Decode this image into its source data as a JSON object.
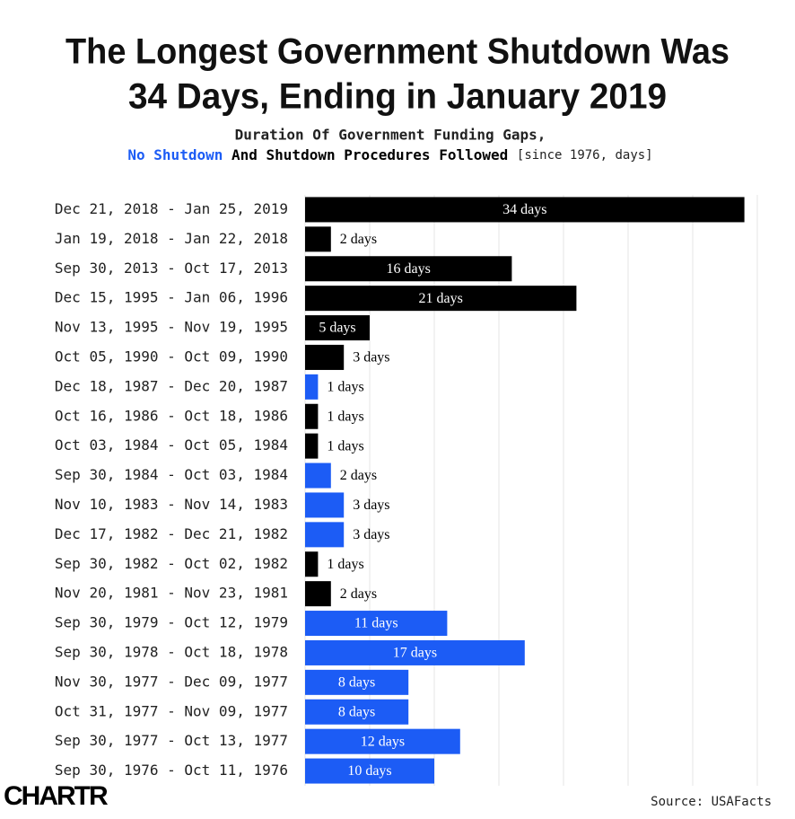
{
  "chart_data": {
    "type": "barh",
    "title": [
      "The Longest Government Shutdown Was",
      "34 Days, Ending in January 2019"
    ],
    "subtitle": "Duration Of Government Funding Gaps,",
    "legend": [
      {
        "name": "No Shutdown",
        "color": "#1c5cf5"
      },
      {
        "name": "And Shutdown Procedures Followed",
        "color": "#000000"
      }
    ],
    "unit_note": "[since 1976, days]",
    "categories": [
      "Dec 21, 2018 - Jan 25, 2019",
      "Jan 19, 2018 - Jan 22, 2018",
      "Sep 30, 2013 - Oct 17, 2013",
      "Dec 15, 1995 - Jan 06, 1996",
      "Nov 13, 1995 - Nov 19, 1995",
      "Oct 05, 1990 - Oct 09, 1990",
      "Dec 18, 1987 - Dec 20, 1987",
      "Oct 16, 1986 - Oct 18, 1986",
      "Oct 03, 1984 - Oct 05, 1984",
      "Sep 30, 1984 - Oct 03, 1984",
      "Nov 10, 1983 - Nov 14, 1983",
      "Dec 17, 1982 - Dec 21, 1982",
      "Sep 30, 1982 - Oct 02, 1982",
      "Nov 20, 1981 - Nov 23, 1981",
      "Sep 30, 1979 - Oct 12, 1979",
      "Sep 30, 1978 - Oct 18, 1978",
      "Nov 30, 1977 - Dec 09, 1977",
      "Oct 31, 1977 - Nov 09, 1977",
      "Sep 30, 1977 - Oct 13, 1977",
      "Sep 30, 1976 - Oct 11, 1976"
    ],
    "values": [
      34,
      2,
      16,
      21,
      5,
      3,
      1,
      1,
      1,
      2,
      3,
      3,
      1,
      2,
      11,
      17,
      8,
      8,
      12,
      10
    ],
    "value_labels": [
      "34 days",
      "2 days",
      "16 days",
      "21 days",
      "5 days",
      "3 days",
      "1 days",
      "1 days",
      "1 days",
      "2 days",
      "3 days",
      "3 days",
      "1 days",
      "2 days",
      "11 days",
      "17 days",
      "8 days",
      "8 days",
      "12 days",
      "10 days"
    ],
    "colors": [
      "#000000",
      "#000000",
      "#000000",
      "#000000",
      "#000000",
      "#000000",
      "#1c5cf5",
      "#000000",
      "#000000",
      "#1c5cf5",
      "#1c5cf5",
      "#1c5cf5",
      "#000000",
      "#000000",
      "#1c5cf5",
      "#1c5cf5",
      "#1c5cf5",
      "#1c5cf5",
      "#1c5cf5",
      "#1c5cf5"
    ],
    "xlim": [
      0,
      35
    ],
    "xticks": [
      0,
      5,
      10,
      15,
      20,
      25,
      30,
      35
    ],
    "grid": true,
    "source": "Source: USAFacts",
    "logo": "CHARTR"
  }
}
